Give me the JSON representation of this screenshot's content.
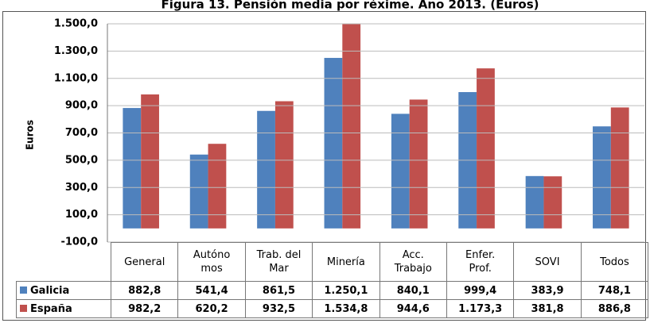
{
  "chart_data": {
    "type": "bar",
    "title": "Figura 13. Pensión media por réxime. Ano 2013. (Euros)",
    "ylabel": "Euros",
    "categories": [
      "General",
      "Autóno\nmos",
      "Trab. del\nMar",
      "Minería",
      "Acc.\nTrabajo",
      "Enfer.\nProf.",
      "SOVI",
      "Todos"
    ],
    "series": [
      {
        "name": "Galicia",
        "color": "#4f81bd",
        "values": [
          882.8,
          541.4,
          861.5,
          1250.1,
          840.1,
          999.4,
          383.9,
          748.1
        ],
        "value_labels": [
          "882,8",
          "541,4",
          "861,5",
          "1.250,1",
          "840,1",
          "999,4",
          "383,9",
          "748,1"
        ]
      },
      {
        "name": "España",
        "color": "#c0504d",
        "values": [
          982.2,
          620.2,
          932.5,
          1534.8,
          944.6,
          1173.3,
          381.8,
          886.8
        ],
        "value_labels": [
          "982,2",
          "620,2",
          "932,5",
          "1.534,8",
          "944,6",
          "1.173,3",
          "381,8",
          "886,8"
        ]
      }
    ],
    "ylim": [
      -100,
      1500
    ],
    "yticks": [
      {
        "value": -100,
        "label": "-100,0"
      },
      {
        "value": 100,
        "label": "100,0"
      },
      {
        "value": 300,
        "label": "300,0"
      },
      {
        "value": 500,
        "label": "500,0"
      },
      {
        "value": 700,
        "label": "700,0"
      },
      {
        "value": 900,
        "label": "900,0"
      },
      {
        "value": 1100,
        "label": "1.100,0"
      },
      {
        "value": 1300,
        "label": "1.300,0"
      },
      {
        "value": 1500,
        "label": "1.500,0"
      }
    ],
    "grid": true
  }
}
